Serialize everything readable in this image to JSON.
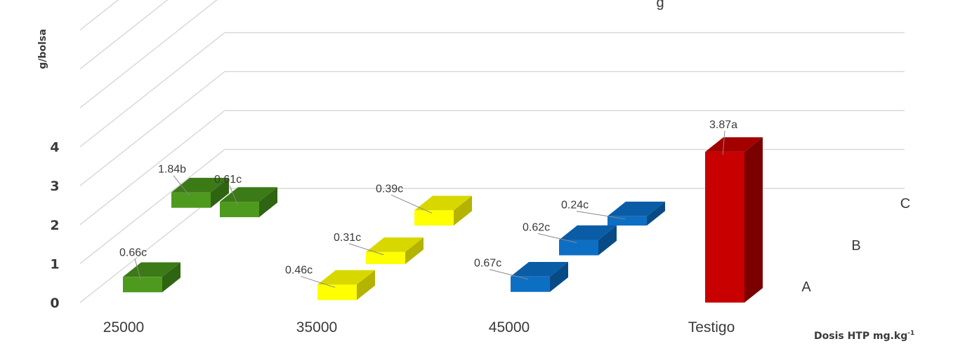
{
  "chart_data": {
    "type": "bar",
    "subtype": "3d-column-grid",
    "title_partial": "g",
    "ylabel": "g/bolsa",
    "xlabel": "Dosis HTP mg.kg",
    "xlabel_superscript": "-1",
    "ylim": [
      0,
      4
    ],
    "yticks": [
      "0",
      "1",
      "2",
      "3",
      "4"
    ],
    "categories": [
      "25000",
      "35000",
      "45000",
      "Testigo"
    ],
    "depth_labels": [
      "A",
      "B",
      "C"
    ],
    "grid": true,
    "series": [
      {
        "name": "A",
        "values": [
          0.66,
          0.46,
          0.67,
          3.87
        ],
        "labels": [
          "0.66c",
          "0.46c",
          "0.67c",
          "3.87a"
        ]
      },
      {
        "name": "B",
        "values": [
          1.84,
          0.31,
          0.62,
          null
        ],
        "labels": [
          "1.84b",
          "0.31c",
          "0.62c",
          ""
        ]
      },
      {
        "name": "C",
        "values": [
          0.61,
          0.39,
          0.24,
          null
        ],
        "labels": [
          "0.61c",
          "0.39c",
          "0.24c",
          ""
        ]
      }
    ],
    "colors": {
      "25000": {
        "front": "#4e9a1f",
        "top": "#3b7a17",
        "side": "#2f6412"
      },
      "35000": {
        "front": "#ffff00",
        "top": "#d8d800",
        "side": "#b3b300"
      },
      "45000": {
        "front": "#0d6fc4",
        "top": "#0b5ca6",
        "side": "#084a86"
      },
      "Testigo": {
        "front": "#c80000",
        "top": "#a30000",
        "side": "#7a0000"
      }
    }
  }
}
